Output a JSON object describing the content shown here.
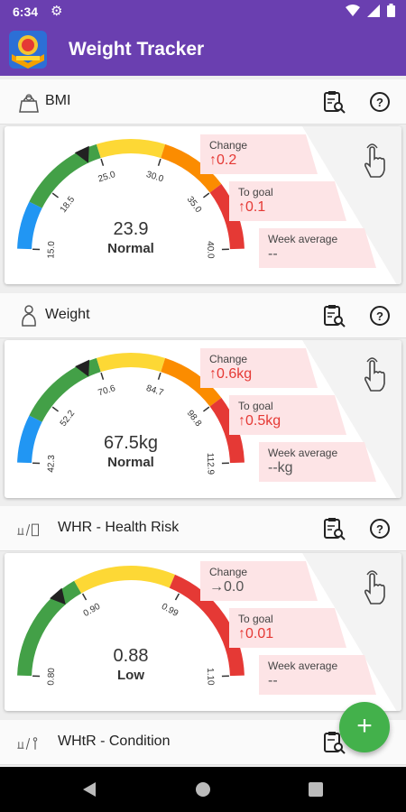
{
  "status": {
    "time": "6:34"
  },
  "app": {
    "title": "Weight Tracker"
  },
  "sections": [
    {
      "title": "BMI",
      "icon": "scale-icon",
      "gauge": {
        "ticks": [
          "15.0",
          "18.5",
          "25.0",
          "30.0",
          "35.0",
          "40.0"
        ],
        "min": 15.0,
        "max": 40.0,
        "value": 23.9,
        "value_text": "23.9",
        "status": "Normal"
      },
      "stats": {
        "change_label": "Change",
        "change_value": "↑0.2",
        "goal_label": "To goal",
        "goal_value": "↑0.1",
        "week_label": "Week average",
        "week_value": "--"
      }
    },
    {
      "title": "Weight",
      "icon": "body-icon",
      "gauge": {
        "ticks": [
          "42.3",
          "52.2",
          "70.6",
          "84.7",
          "98.8",
          "112.9"
        ],
        "min": 42.3,
        "max": 112.9,
        "value": 67.5,
        "value_text": "67.5kg",
        "status": "Normal"
      },
      "stats": {
        "change_label": "Change",
        "change_value": "↑0.6kg",
        "goal_label": "To goal",
        "goal_value": "↑0.5kg",
        "week_label": "Week average",
        "week_value": "--kg"
      }
    },
    {
      "title": "WHR - Health Risk",
      "icon": "waist-hip-icon",
      "gauge": {
        "ticks": [
          "0.80",
          "0.90",
          "0.99",
          "1.10"
        ],
        "min": 0.8,
        "max": 1.1,
        "value": 0.88,
        "value_text": "0.88",
        "status": "Low"
      },
      "stats": {
        "change_label": "Change",
        "change_value": "→0.0",
        "goal_label": "To goal",
        "goal_value": "↑0.01",
        "week_label": "Week average",
        "week_value": "--"
      }
    },
    {
      "title": "WHtR - Condition",
      "icon": "waist-height-icon"
    }
  ],
  "colors": {
    "primary": "#6a3fb0",
    "blue": "#2196f3",
    "green": "#43a047",
    "yellow": "#fdd835",
    "orange": "#fb8c00",
    "red": "#e53935",
    "fab": "#43b14b"
  }
}
